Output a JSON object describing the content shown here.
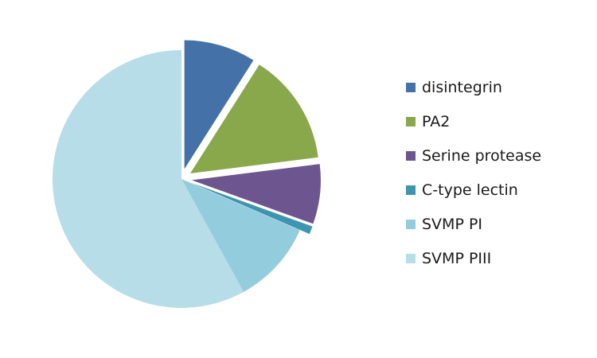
{
  "chart_data": {
    "type": "pie",
    "title": "",
    "legend_position": "right",
    "exploded": true,
    "series": [
      {
        "values": [
          9.0,
          14.0,
          7.5,
          1.0,
          10.5,
          58.0
        ]
      }
    ],
    "categories": [
      "disintegrin",
      "PA2",
      "Serine protease",
      "C-type lectin",
      "SVMP PI",
      "SVMP PIII"
    ],
    "slices": [
      {
        "label": "disintegrin",
        "value": 9.0,
        "color": "#4472a8",
        "exploded": true
      },
      {
        "label": "PA2",
        "value": 14.0,
        "color": "#89a84c",
        "exploded": true
      },
      {
        "label": "Serine protease",
        "value": 7.5,
        "color": "#6d568f",
        "exploded": true
      },
      {
        "label": "C-type lectin",
        "value": 1.0,
        "color": "#3d95b0",
        "exploded": true
      },
      {
        "label": "SVMP PI",
        "value": 10.5,
        "color": "#93cddd",
        "exploded": false
      },
      {
        "label": "SVMP PIII",
        "value": 58.0,
        "color": "#b6dde8",
        "exploded": false
      }
    ]
  }
}
